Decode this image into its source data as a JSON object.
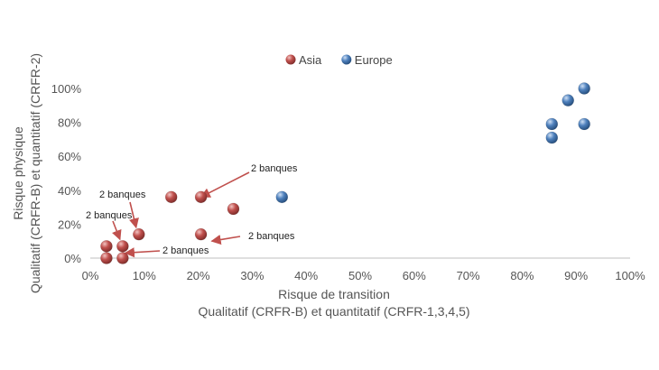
{
  "chart_data": {
    "type": "scatter",
    "xlabel": [
      "Risque de transition",
      "Qualitatif (CRFR-B) et quantitatif (CRFR-1,3,4,5)"
    ],
    "ylabel": [
      "Risque physique",
      "Qualitatif (CRFR-B) et quantitatif (CRFR-2)"
    ],
    "x_ticks": [
      "0%",
      "10%",
      "20%",
      "30%",
      "40%",
      "50%",
      "60%",
      "70%",
      "80%",
      "90%",
      "100%"
    ],
    "y_ticks": [
      "0%",
      "20%",
      "40%",
      "60%",
      "80%",
      "100%"
    ],
    "xlim": [
      0,
      100
    ],
    "ylim": [
      0,
      100
    ],
    "grid": false,
    "legend_position": "top-center",
    "series": [
      {
        "name": "Asia",
        "color": "#c0504d",
        "points": [
          {
            "x": 3,
            "y": 0
          },
          {
            "x": 6,
            "y": 0
          },
          {
            "x": 3,
            "y": 7
          },
          {
            "x": 6,
            "y": 7
          },
          {
            "x": 9,
            "y": 14
          },
          {
            "x": 20.5,
            "y": 14
          },
          {
            "x": 26.5,
            "y": 29
          },
          {
            "x": 15,
            "y": 36
          },
          {
            "x": 20.5,
            "y": 36
          }
        ]
      },
      {
        "name": "Europe",
        "color": "#4f81bd",
        "points": [
          {
            "x": 35.5,
            "y": 36
          },
          {
            "x": 85.5,
            "y": 71
          },
          {
            "x": 85.5,
            "y": 79
          },
          {
            "x": 91.5,
            "y": 79
          },
          {
            "x": 88.5,
            "y": 93
          },
          {
            "x": 91.5,
            "y": 100
          }
        ]
      }
    ],
    "annotations": [
      {
        "text": "2 banques",
        "target": {
          "x": 20.5,
          "y": 36
        }
      },
      {
        "text": "2 banques",
        "target": {
          "x": 8.5,
          "y": 18
        }
      },
      {
        "text": "2 banques",
        "target": {
          "x": 5.5,
          "y": 11
        }
      },
      {
        "text": "2 banques",
        "target": {
          "x": 22.5,
          "y": 10
        }
      },
      {
        "text": "2 banques",
        "target": {
          "x": 6.5,
          "y": 3
        }
      }
    ]
  }
}
